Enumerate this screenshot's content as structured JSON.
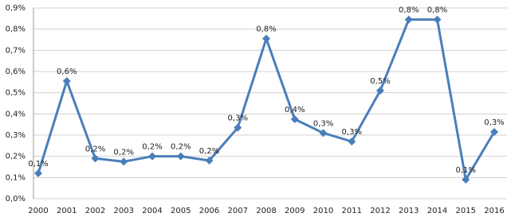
{
  "chart_data": {
    "type": "line",
    "categories": [
      "2000",
      "2001",
      "2002",
      "2003",
      "2004",
      "2005",
      "2006",
      "2007",
      "2008",
      "2009",
      "2010",
      "2011",
      "2012",
      "2013",
      "2014",
      "2015",
      "2016"
    ],
    "values": [
      0.12,
      0.555,
      0.19,
      0.175,
      0.2,
      0.2,
      0.18,
      0.335,
      0.755,
      0.375,
      0.31,
      0.27,
      0.51,
      0.845,
      0.845,
      0.09,
      0.315
    ],
    "value_labels": [
      "0,1%",
      "0,6%",
      "0,2%",
      "0,2%",
      "0,2%",
      "0,2%",
      "0,2%",
      "0,3%",
      "0,8%",
      "0,4%",
      "0,3%",
      "0,3%",
      "0,5%",
      "0,8%",
      "0,8%",
      "0,1%",
      "0,3%"
    ],
    "color": "#4a7ebb",
    "ylim": [
      0,
      0.9
    ],
    "yticks": [
      {
        "value": 0,
        "label": "0,0%"
      },
      {
        "value": 0.1,
        "label": "0,1%"
      },
      {
        "value": 0.2,
        "label": "0,2%"
      },
      {
        "value": 0.3,
        "label": "0,3%"
      },
      {
        "value": 0.4,
        "label": "0,4%"
      },
      {
        "value": 0.5,
        "label": "0,5%"
      },
      {
        "value": 0.6,
        "label": "0,6%"
      },
      {
        "value": 0.7,
        "label": "0,7%"
      },
      {
        "value": 0.8,
        "label": "0,8%"
      },
      {
        "value": 0.9,
        "label": "0,9%"
      }
    ],
    "grid": true
  }
}
